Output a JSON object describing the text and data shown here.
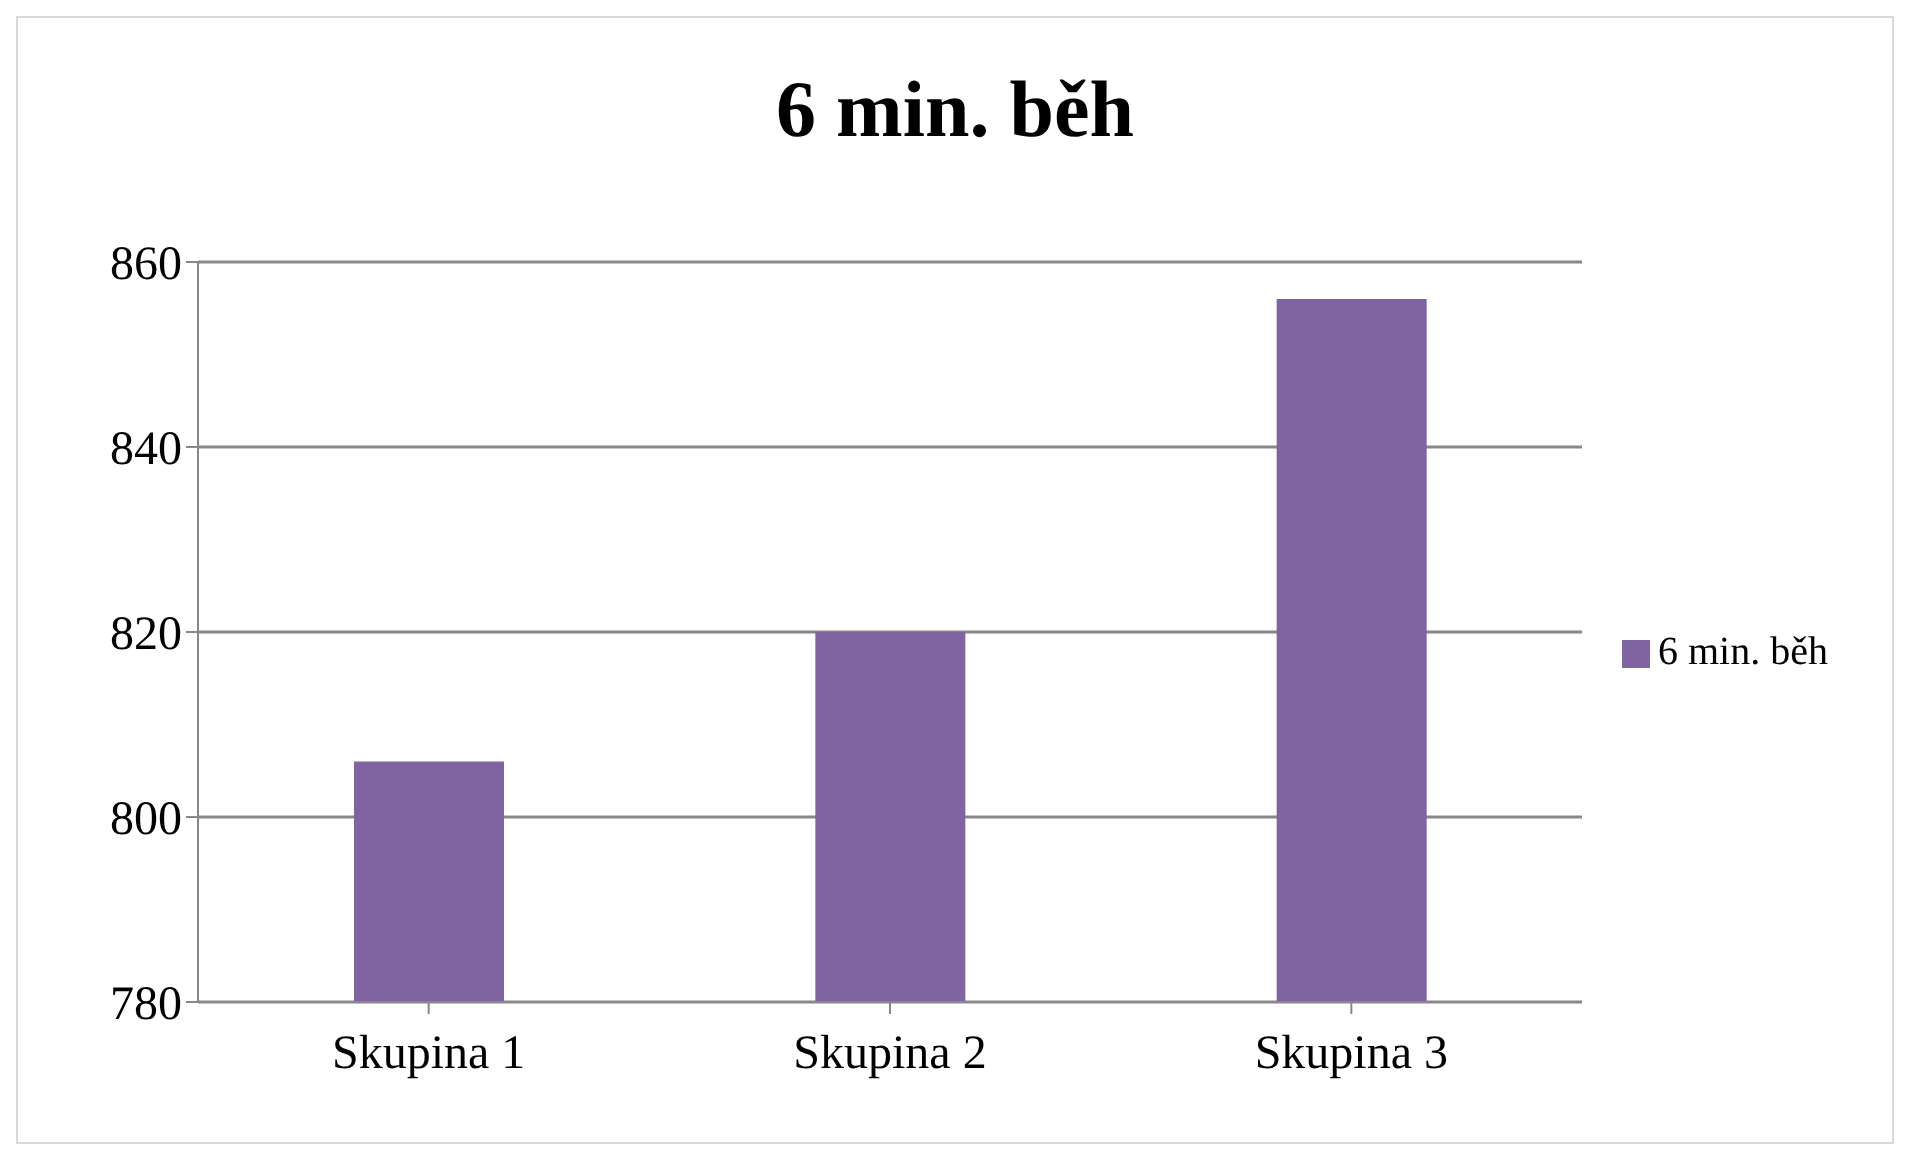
{
  "chart_data": {
    "type": "bar",
    "title": "6 min. běh",
    "categories": [
      "Skupina 1",
      "Skupina 2",
      "Skupina 3"
    ],
    "series": [
      {
        "name": "6 min. běh",
        "color": "#8064a2",
        "values": [
          806,
          820,
          856
        ]
      }
    ],
    "ylim": [
      780,
      860
    ],
    "yticks": [
      780,
      800,
      820,
      840,
      860
    ],
    "grid": "y",
    "legend": "right"
  }
}
